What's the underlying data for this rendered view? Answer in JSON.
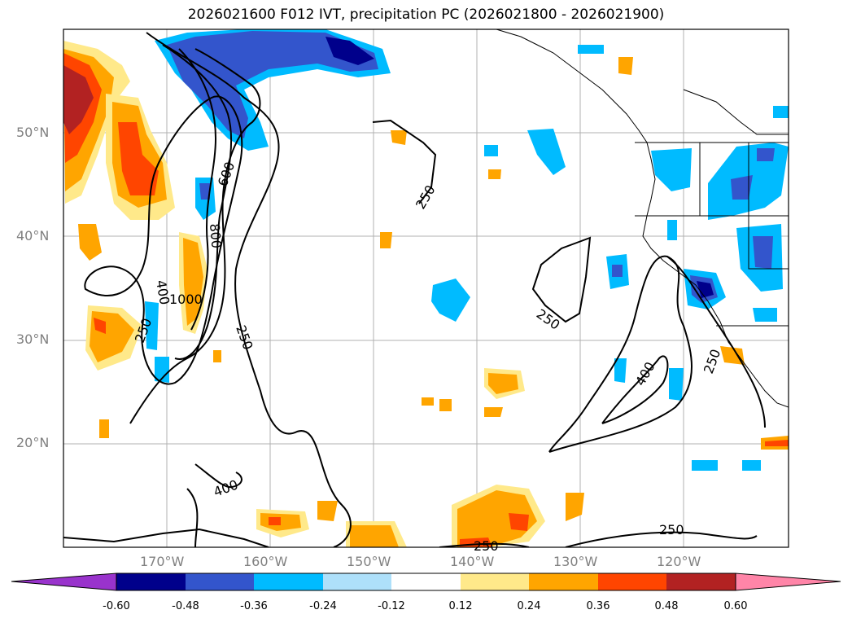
{
  "title": "2026021600 F012 IVT, precipitation PC (2026021800 - 2026021900)",
  "map": {
    "lat_labels": [
      "50°N",
      "40°N",
      "30°N",
      "20°N"
    ],
    "lon_labels": [
      "170°W",
      "160°W",
      "150°W",
      "140°W",
      "130°W",
      "120°W"
    ],
    "contour_labels": [
      "250",
      "400",
      "600",
      "800",
      "1000",
      "250",
      "250",
      "400",
      "250",
      "250",
      "250",
      "400",
      "250"
    ]
  },
  "colorbar": {
    "ticks": [
      "-0.60",
      "-0.48",
      "-0.36",
      "-0.24",
      "-0.12",
      "0.12",
      "0.24",
      "0.36",
      "0.48",
      "0.60"
    ],
    "colors": [
      "#9933cc",
      "#00008b",
      "#3355cc",
      "#00bbff",
      "#aee0fa",
      "#ffffff",
      "#ffe98a",
      "#ffa500",
      "#ff4500",
      "#b22222",
      "#ff85a8"
    ]
  },
  "colors": {
    "blue_dark": "#00008b",
    "blue_mid": "#3355cc",
    "blue": "#00bbff",
    "blue_light": "#aee0fa",
    "yellow": "#ffe98a",
    "orange": "#ffa500",
    "red": "#ff4500",
    "darkred": "#b22222"
  }
}
